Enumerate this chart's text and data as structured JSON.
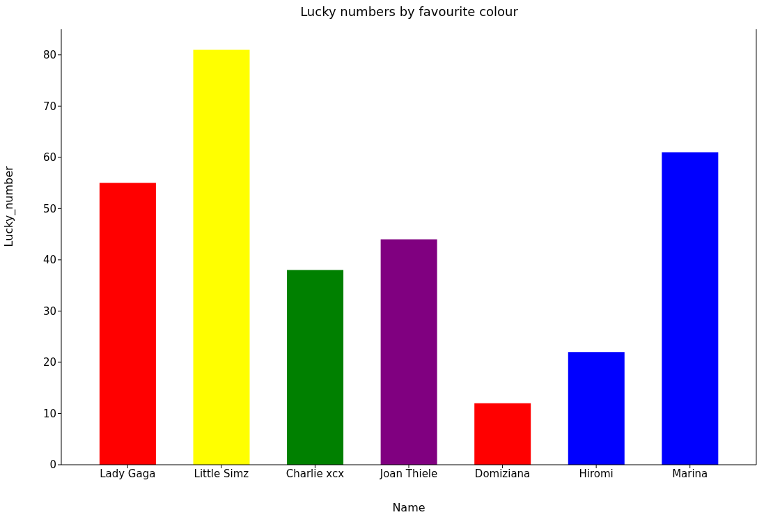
{
  "chart_data": {
    "type": "bar",
    "title": "Lucky numbers by favourite colour",
    "xlabel": "Name",
    "ylabel": "Lucky_number",
    "categories": [
      "Lady Gaga",
      "Little Simz",
      "Charlie xcx",
      "Joan Thiele",
      "Domiziana",
      "Hiromi",
      "Marina"
    ],
    "values": [
      55,
      81,
      38,
      44,
      12,
      22,
      61
    ],
    "colors": [
      "#ff0000",
      "#ffff00",
      "#008000",
      "#800080",
      "#ff0000",
      "#0000ff",
      "#0000ff"
    ],
    "ylim": [
      0,
      85
    ],
    "yticks": [
      0,
      10,
      20,
      30,
      40,
      50,
      60,
      70,
      80
    ],
    "grid": false,
    "legend": false
  }
}
